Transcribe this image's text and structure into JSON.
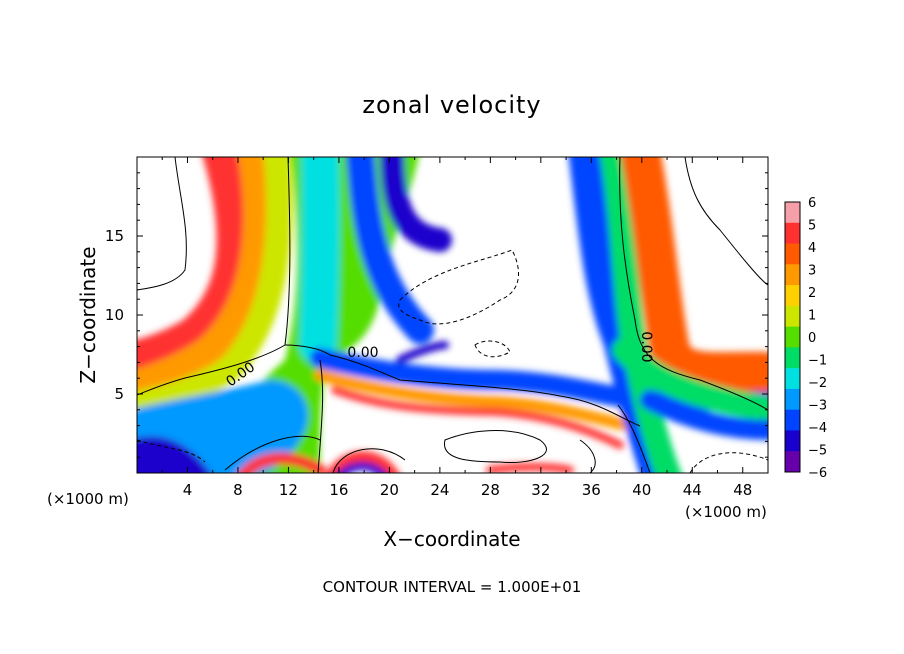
{
  "chart_data": {
    "type": "heatmap",
    "title": "zonal velocity",
    "xlabel": "X−coordinate",
    "ylabel": "Z−coordinate",
    "x_unit_left": "(×1000 m)",
    "x_unit_right": "(×1000 m)",
    "footer": "CONTOUR INTERVAL = 1.000E+01",
    "contour_label_1": "0.00",
    "contour_label_2": "0.00",
    "contour_label_3": "0.00",
    "xlim": [
      0,
      50
    ],
    "ylim": [
      0,
      20
    ],
    "x_ticks": [
      4,
      8,
      12,
      16,
      20,
      24,
      28,
      32,
      36,
      40,
      44,
      48
    ],
    "x_tick_labels": [
      "4",
      "8",
      "12",
      "16",
      "20",
      "24",
      "28",
      "32",
      "36",
      "40",
      "44",
      "48"
    ],
    "y_ticks": [
      5,
      10,
      15
    ],
    "y_tick_labels": [
      "5",
      "10",
      "15"
    ],
    "colorbar": {
      "values": [
        6,
        5,
        4,
        3,
        2,
        1,
        0,
        -1,
        -2,
        -3,
        -4,
        -5,
        -6
      ],
      "labels": [
        "6",
        "5",
        "4",
        "3",
        "2",
        "1",
        "0",
        "−1",
        "−2",
        "−3",
        "−4",
        "−5",
        "−6"
      ],
      "colors": [
        "#f5a0a8",
        "#ff3030",
        "#ff5a00",
        "#ff9900",
        "#ffd000",
        "#cce600",
        "#55dd00",
        "#00dd66",
        "#00e0e0",
        "#0099ff",
        "#0044ff",
        "#1a00cc",
        "#6600aa"
      ]
    }
  }
}
